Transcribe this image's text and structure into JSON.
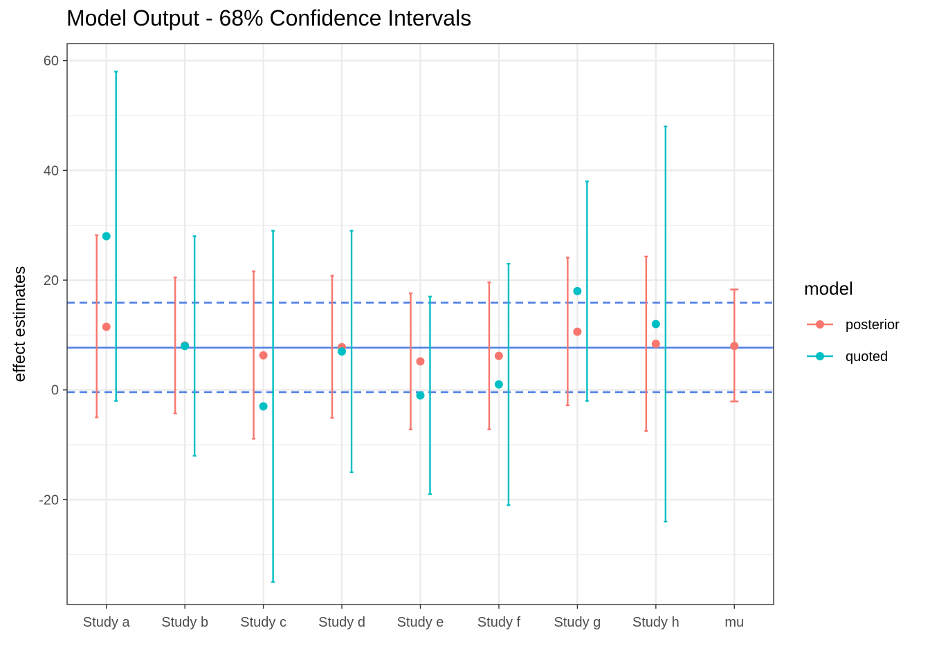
{
  "chart_data": {
    "type": "errorbar",
    "title": "Model Output - 68% Confidence Intervals",
    "xlabel": "",
    "ylabel": "effect estimates",
    "categories": [
      "Study a",
      "Study b",
      "Study c",
      "Study d",
      "Study e",
      "Study f",
      "Study g",
      "Study h",
      "mu"
    ],
    "ylim": [
      -39.1,
      63.1
    ],
    "y_ticks": [
      -20,
      0,
      20,
      40,
      60
    ],
    "y_tick_labels": [
      "-20",
      "0",
      "20",
      "40",
      "60"
    ],
    "grid": true,
    "legend": {
      "title": "model",
      "position": "right"
    },
    "series": [
      {
        "name": "posterior",
        "color": "#F8766D",
        "points": [
          {
            "category": "Study a",
            "y": 11.5,
            "low": -5.0,
            "high": 28.2
          },
          {
            "category": "Study b",
            "y": 8.1,
            "low": -4.3,
            "high": 20.5
          },
          {
            "category": "Study c",
            "y": 6.3,
            "low": -8.9,
            "high": 21.6
          },
          {
            "category": "Study d",
            "y": 7.8,
            "low": -5.1,
            "high": 20.8
          },
          {
            "category": "Study e",
            "y": 5.2,
            "low": -7.2,
            "high": 17.6
          },
          {
            "category": "Study f",
            "y": 6.2,
            "low": -7.2,
            "high": 19.6
          },
          {
            "category": "Study g",
            "y": 10.6,
            "low": -2.8,
            "high": 24.1
          },
          {
            "category": "Study h",
            "y": 8.4,
            "low": -7.5,
            "high": 24.3
          },
          {
            "category": "mu",
            "y": 8.0,
            "low": -2.1,
            "high": 18.3
          }
        ]
      },
      {
        "name": "quoted",
        "color": "#00BFC4",
        "points": [
          {
            "category": "Study a",
            "y": 28.0,
            "low": -2.0,
            "high": 58.0
          },
          {
            "category": "Study b",
            "y": 8.0,
            "low": -12.0,
            "high": 28.0
          },
          {
            "category": "Study c",
            "y": -3.0,
            "low": -35.0,
            "high": 29.0
          },
          {
            "category": "Study d",
            "y": 7.0,
            "low": -15.0,
            "high": 29.0
          },
          {
            "category": "Study e",
            "y": -1.0,
            "low": -19.0,
            "high": 17.0
          },
          {
            "category": "Study f",
            "y": 1.0,
            "low": -21.0,
            "high": 23.0
          },
          {
            "category": "Study g",
            "y": 18.0,
            "low": -2.0,
            "high": 38.0
          },
          {
            "category": "Study h",
            "y": 12.0,
            "low": -24.0,
            "high": 48.0
          }
        ]
      }
    ],
    "reference_lines": [
      {
        "kind": "mean",
        "y": 7.7,
        "style": "solid",
        "color": "#4F7FE6"
      },
      {
        "kind": "upper",
        "y": 15.9,
        "style": "dashed",
        "color": "#4F7FE6"
      },
      {
        "kind": "lower",
        "y": -0.4,
        "style": "dashed",
        "color": "#4F7FE6"
      }
    ]
  }
}
